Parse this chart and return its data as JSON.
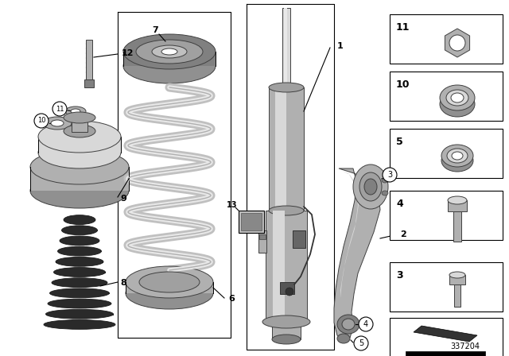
{
  "bg_color": "#ffffff",
  "diagram_number": "337204",
  "fig_width": 6.4,
  "fig_height": 4.48,
  "dpi": 100,
  "silver": "#b0b0b0",
  "light_silver": "#d8d8d8",
  "dark_silver": "#808080",
  "mid_gray": "#a0a0a0",
  "dark_rubber": "#2a2a2a",
  "outline": "#404040",
  "coil_light": "#d0d0d0",
  "coil_dark": "#909090"
}
